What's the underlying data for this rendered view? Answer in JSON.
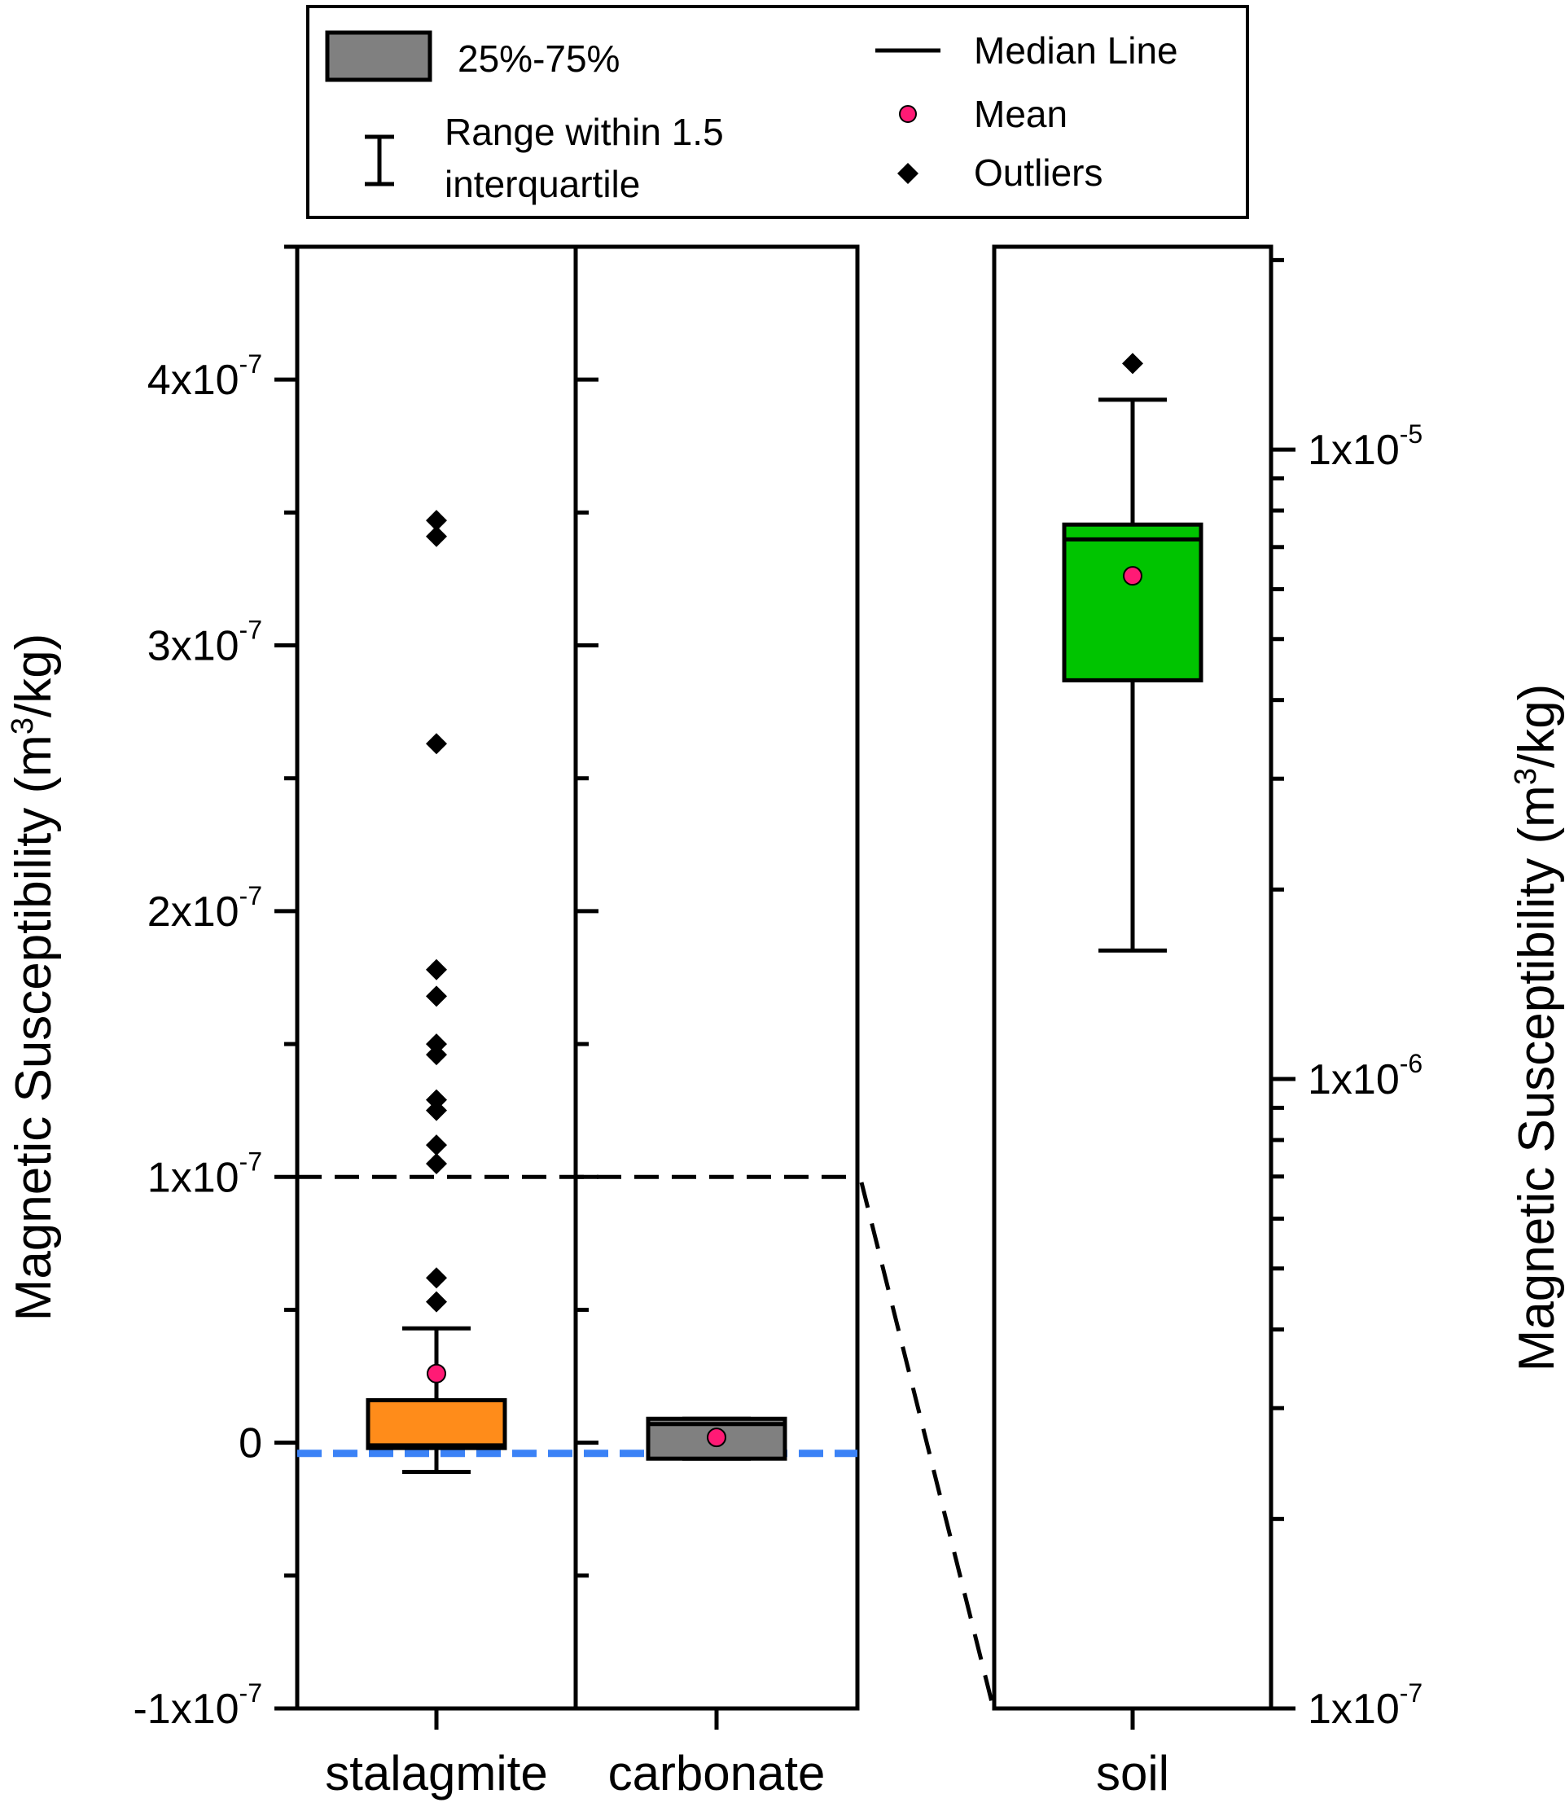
{
  "chart_data": {
    "type": "box",
    "legend": {
      "placement": "top",
      "box_label": "25%-75%",
      "whisker_label_line1": "Range within 1.5",
      "whisker_label_line2": "interquartile",
      "median_label": "Median Line",
      "mean_label": "Mean",
      "outliers_label": "Outliers"
    },
    "left_panel": {
      "scale": "linear",
      "ylabel": "Magnetic Susceptibility (m³/kg)",
      "ylabel_main": "Magnetic Susceptibility (m",
      "ylabel_sup": "3",
      "ylabel_tail": "/kg)",
      "ylim": [
        -1e-07,
        4.5e-07
      ],
      "ticks": [
        {
          "value": -1e-07,
          "base": "-1x10",
          "exp": "-7"
        },
        {
          "value": 0,
          "base": "0",
          "exp": ""
        },
        {
          "value": 1e-07,
          "base": "1x10",
          "exp": "-7"
        },
        {
          "value": 2e-07,
          "base": "2x10",
          "exp": "-7"
        },
        {
          "value": 3e-07,
          "base": "3x10",
          "exp": "-7"
        },
        {
          "value": 4e-07,
          "base": "4x10",
          "exp": "-7"
        }
      ],
      "reference_lines": [
        {
          "value": 1e-07,
          "style": "dashed",
          "color": "#000000"
        },
        {
          "value": -4e-09,
          "style": "dashed",
          "color": "#3b82f6"
        }
      ],
      "categories": [
        {
          "name": "stalagmite",
          "color": "#ff8c1a",
          "q1": -2e-09,
          "median": -1e-09,
          "q3": 1.6e-08,
          "whisker_low": -1.1e-08,
          "whisker_high": 4.3e-08,
          "mean": 2.6e-08,
          "outliers": [
            3.47e-07,
            3.41e-07,
            2.63e-07,
            1.78e-07,
            1.68e-07,
            1.5e-07,
            1.46e-07,
            1.29e-07,
            1.25e-07,
            1.12e-07,
            1.05e-07,
            6.2e-08,
            5.3e-08
          ]
        },
        {
          "name": "carbonate",
          "color": "#808080",
          "q1": -6e-09,
          "median": 7e-09,
          "q3": 9e-09,
          "whisker_low": -6e-09,
          "whisker_high": 9e-09,
          "mean": 2e-09,
          "outliers": []
        }
      ]
    },
    "right_panel": {
      "scale": "log",
      "ylabel": "Magnetic Susceptibility (m³/kg)",
      "ylabel_main": "Magnetic Susceptibility (m",
      "ylabel_sup": "3",
      "ylabel_tail": "/kg)",
      "ylim": [
        1e-07,
        2.1e-05
      ],
      "ticks": [
        {
          "value": 1e-07,
          "base": "1x10",
          "exp": "-7"
        },
        {
          "value": 1e-06,
          "base": "1x10",
          "exp": "-6"
        },
        {
          "value": 1e-05,
          "base": "1x10",
          "exp": "-5"
        }
      ],
      "categories": [
        {
          "name": "soil",
          "color": "#00c400",
          "q1": 4.3e-06,
          "median": 7.2e-06,
          "q3": 7.6e-06,
          "whisker_low": 1.6e-06,
          "whisker_high": 1.2e-05,
          "mean": 6.3e-06,
          "outliers": [
            1.37e-05
          ]
        }
      ]
    }
  }
}
